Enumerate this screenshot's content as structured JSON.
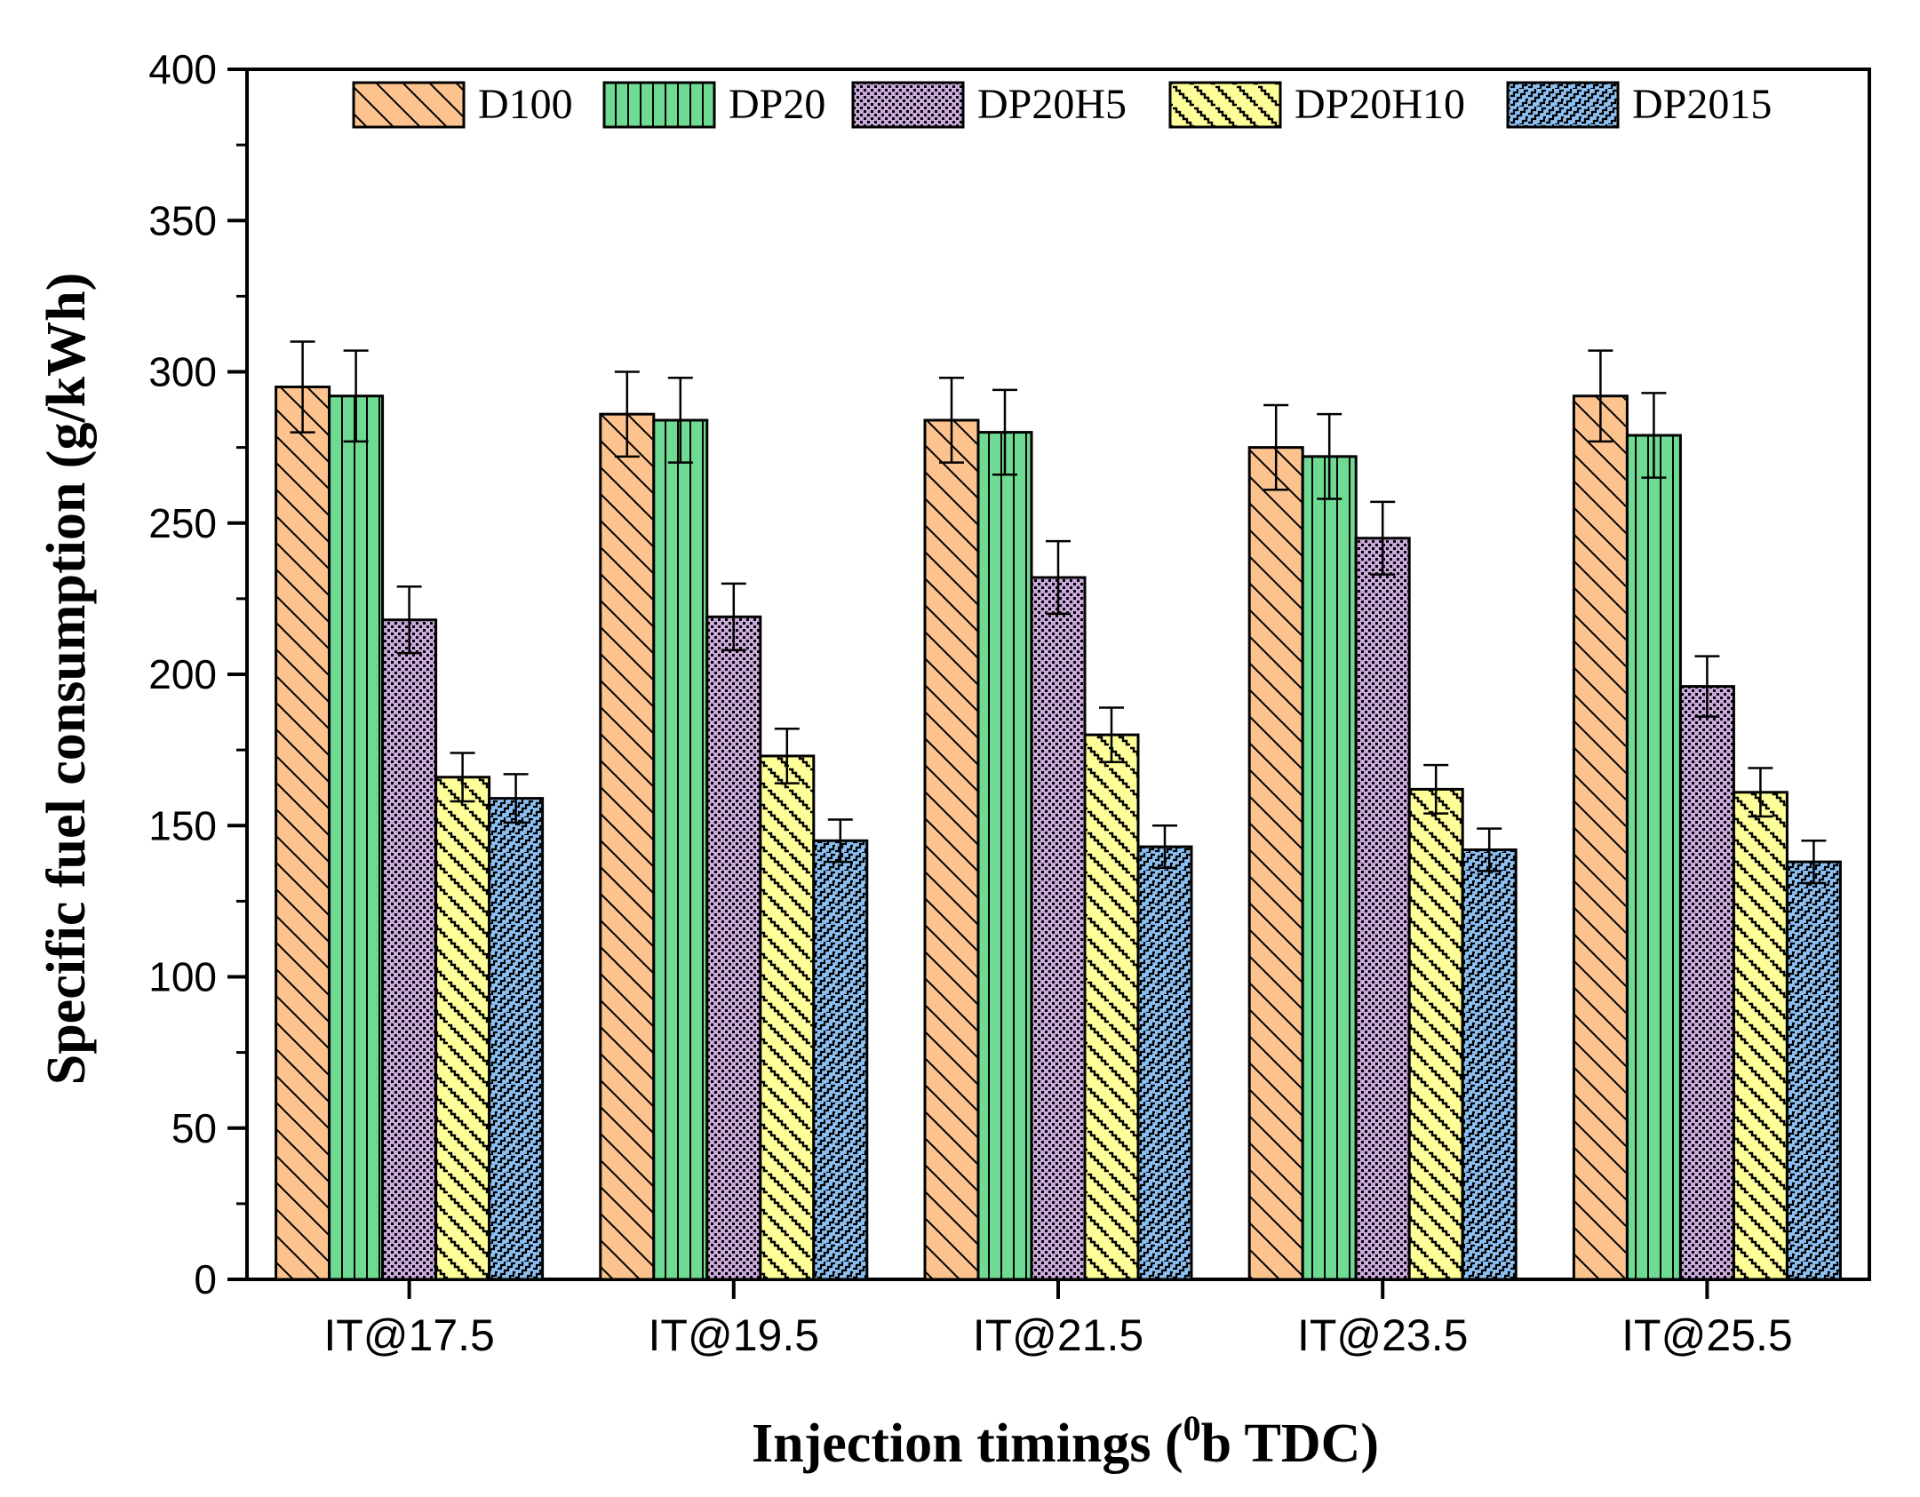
{
  "chart_data": {
    "type": "bar",
    "title": "",
    "xlabel": "Injection timings (",
    "xlabel_superscript": "0",
    "xlabel_suffix": "b TDC)",
    "ylabel": "Specific fuel consumption (g/kWh)",
    "ylim": [
      0,
      400
    ],
    "yticks": [
      0,
      50,
      100,
      150,
      200,
      250,
      300,
      350,
      400
    ],
    "grid": false,
    "legend_position": "top",
    "categories": [
      "IT@17.5",
      "IT@19.5",
      "IT@21.5",
      "IT@23.5",
      "IT@25.5"
    ],
    "series": [
      {
        "name": "D100",
        "color": "#FDC38E",
        "pattern": "diag-back",
        "values": [
          295,
          286,
          284,
          275,
          292
        ],
        "errors": [
          15,
          14,
          14,
          14,
          15
        ]
      },
      {
        "name": "DP20",
        "color": "#6FDA92",
        "pattern": "vertical",
        "values": [
          292,
          284,
          280,
          272,
          279
        ],
        "errors": [
          15,
          14,
          14,
          14,
          14
        ]
      },
      {
        "name": "DP20H5",
        "color": "#C9A8DA",
        "pattern": "checker",
        "values": [
          218,
          219,
          232,
          245,
          196
        ],
        "errors": [
          11,
          11,
          12,
          12,
          10
        ]
      },
      {
        "name": "DP20H10",
        "color": "#FFFF9A",
        "pattern": "zigzag-back",
        "values": [
          166,
          173,
          180,
          162,
          161
        ],
        "errors": [
          8,
          9,
          9,
          8,
          8
        ]
      },
      {
        "name": "DP2015",
        "color": "#8CC0F2",
        "pattern": "zigzag-fwd",
        "values": [
          159,
          145,
          143,
          142,
          138
        ],
        "errors": [
          8,
          7,
          7,
          7,
          7
        ]
      }
    ]
  }
}
